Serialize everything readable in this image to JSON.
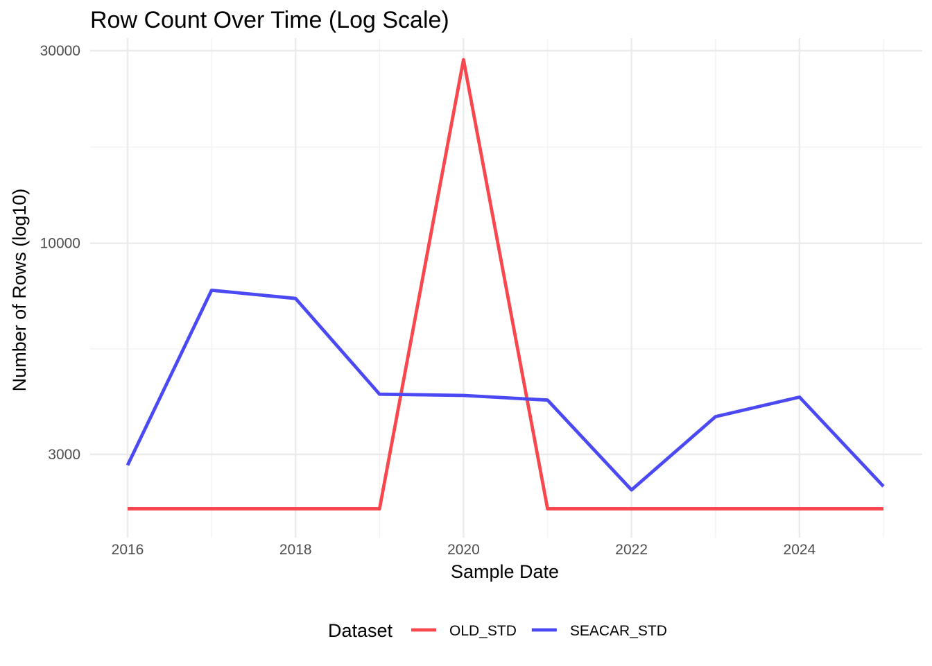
{
  "chart_data": {
    "type": "line",
    "title": "Row Count Over Time (Log Scale)",
    "xlabel": "Sample Date",
    "ylabel": "Number of Rows (log10)",
    "y_scale": "log10",
    "ylim": [
      2200,
      30000
    ],
    "y_ticks": [
      3000,
      10000,
      30000
    ],
    "y_tick_labels": [
      "3000",
      "10000",
      "30000"
    ],
    "xlim": [
      2016,
      2025
    ],
    "x_ticks": [
      2016,
      2018,
      2020,
      2022,
      2024
    ],
    "x_tick_labels": [
      "2016",
      "2018",
      "2020",
      "2022",
      "2024"
    ],
    "x": [
      2016,
      2017,
      2018,
      2019,
      2020,
      2021,
      2022,
      2023,
      2024,
      2025
    ],
    "series": [
      {
        "name": "OLD_STD",
        "color": "#F8484E",
        "values": [
          2200,
          2200,
          2200,
          2200,
          28500,
          2200,
          2200,
          2200,
          2200,
          2200
        ]
      },
      {
        "name": "SEACAR_STD",
        "color": "#4B49F3",
        "values": [
          2820,
          7650,
          7300,
          4230,
          4200,
          4090,
          2450,
          3720,
          4160,
          2500
        ]
      }
    ],
    "grid": true,
    "legend_position": "bottom",
    "legend_title": "Dataset"
  }
}
